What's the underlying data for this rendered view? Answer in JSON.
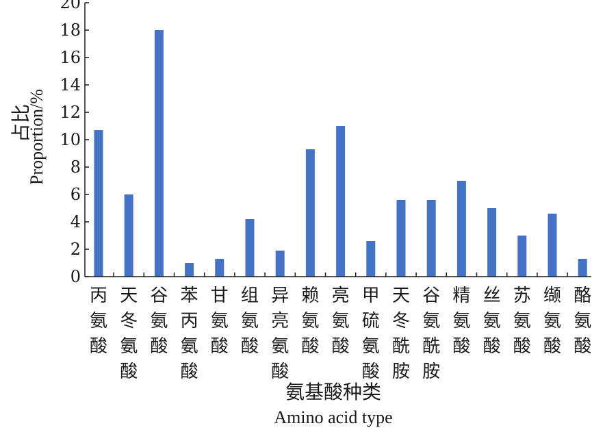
{
  "chart_data": {
    "type": "bar",
    "categories": [
      "丙氨酸",
      "天冬氨酸",
      "谷氨酸",
      "苯丙氨酸",
      "甘氨酸",
      "组氨酸",
      "异亮氨酸",
      "赖氨酸",
      "亮氨酸",
      "甲硫氨酸",
      "天冬酰胺",
      "谷氨酰胺",
      "精氨酸",
      "丝氨酸",
      "苏氨酸",
      "缬氨酸",
      "酪氨酸"
    ],
    "values": [
      10.7,
      6.0,
      18.0,
      1.0,
      1.3,
      4.2,
      1.9,
      9.3,
      11.0,
      2.6,
      5.6,
      5.6,
      7.0,
      5.0,
      3.0,
      4.6,
      1.3
    ],
    "ylim": [
      0,
      20
    ],
    "yticks": [
      "0",
      "2",
      "4",
      "6",
      "8",
      "10",
      "12",
      "14",
      "16",
      "18",
      "20"
    ],
    "ylabel_cn": "占比",
    "ylabel_en": "Proportion/%",
    "xlabel_cn": "氨基酸种类",
    "xlabel_en": "Amino acid type",
    "bar_color": "#4472c4",
    "grid": false
  }
}
